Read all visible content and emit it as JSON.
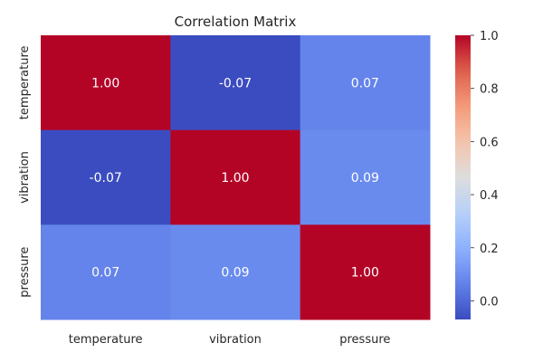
{
  "chart_data": {
    "type": "heatmap",
    "title": "Correlation Matrix",
    "x_categories": [
      "temperature",
      "vibration",
      "pressure"
    ],
    "y_categories": [
      "temperature",
      "vibration",
      "pressure"
    ],
    "values": [
      [
        1.0,
        -0.07,
        0.07
      ],
      [
        -0.07,
        1.0,
        0.09
      ],
      [
        0.07,
        0.09,
        1.0
      ]
    ],
    "cell_labels": [
      [
        "1.00",
        "-0.07",
        "0.07"
      ],
      [
        "-0.07",
        "1.00",
        "0.09"
      ],
      [
        "0.07",
        "0.09",
        "1.00"
      ]
    ],
    "colormap": "coolwarm",
    "colorbar": {
      "min": -0.07,
      "max": 1.0,
      "ticks": [
        0.0,
        0.2,
        0.4,
        0.6,
        0.8,
        1.0
      ],
      "tick_labels": [
        "0.0",
        "0.2",
        "0.4",
        "0.6",
        "0.8",
        "1.0"
      ]
    }
  }
}
